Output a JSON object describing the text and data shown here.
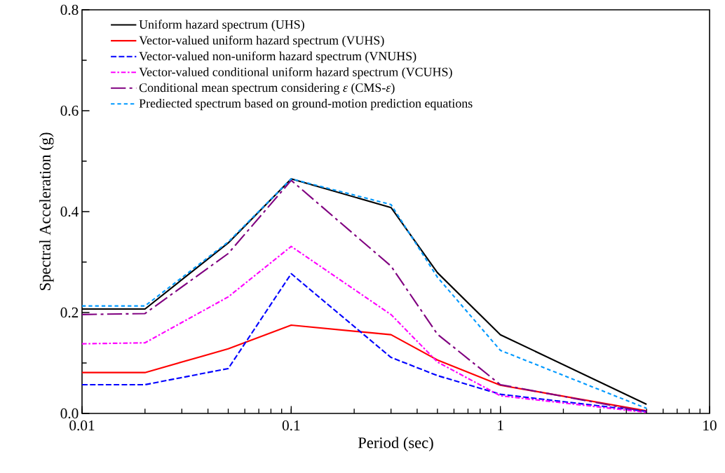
{
  "chart_data": {
    "type": "line",
    "xlabel": "Period (sec)",
    "ylabel": "Spectral Acceleration (g)",
    "log": "x",
    "legend": "top left",
    "x": [
      0.01,
      0.02,
      0.05,
      0.1,
      0.3,
      0.5,
      1,
      5
    ],
    "xlim": [
      0.01,
      10
    ],
    "xticks": [
      0.01,
      0.1,
      1,
      10
    ],
    "ylim": [
      0,
      0.8
    ],
    "yticks": [
      {
        "value": 0,
        "label": "0.0"
      },
      {
        "value": 0.2,
        "label": "0.2"
      },
      {
        "value": 0.4,
        "label": "0.4"
      },
      {
        "value": 0.6,
        "label": "0.6"
      },
      {
        "value": 0.8,
        "label": "0.8"
      }
    ],
    "series": [
      {
        "name": "Uniform hazard spectrum (UHS)",
        "color": "#000000",
        "line_style": "solid",
        "values": [
          0.207,
          0.207,
          0.338,
          0.465,
          0.408,
          0.279,
          0.156,
          0.018
        ]
      },
      {
        "name": "Vector-valued uniform hazard spectrum (VUHS)",
        "color": "#ff0000",
        "line_style": "solid",
        "values": [
          0.081,
          0.081,
          0.128,
          0.175,
          0.156,
          0.106,
          0.056,
          0.005
        ]
      },
      {
        "name": "Vector-valued non-uniform hazard spectrum (VNUHS)",
        "color": "#0000ff",
        "line_style": "dashed",
        "values": [
          0.057,
          0.057,
          0.089,
          0.277,
          0.111,
          0.075,
          0.038,
          0.004
        ]
      },
      {
        "name": "Vector-valued conditional uniform hazard spectrum (VCUHS)",
        "color": "#ff00ff",
        "line_style": "dashdot",
        "values": [
          0.138,
          0.14,
          0.231,
          0.331,
          0.196,
          0.102,
          0.035,
          0.002
        ]
      },
      {
        "name": "Conditional mean spectrum considering *ε* (CMS-*ε*)",
        "color": "#800080",
        "line_style": "longdashdot",
        "values": [
          0.196,
          0.198,
          0.317,
          0.462,
          0.292,
          0.157,
          0.057,
          0.003
        ]
      },
      {
        "name": "Prediected spectrum based on ground-motion prediction equations",
        "color": "#0099ff",
        "line_style": "dotted",
        "values": [
          0.213,
          0.213,
          0.34,
          0.465,
          0.414,
          0.27,
          0.125,
          0.01
        ]
      }
    ]
  }
}
